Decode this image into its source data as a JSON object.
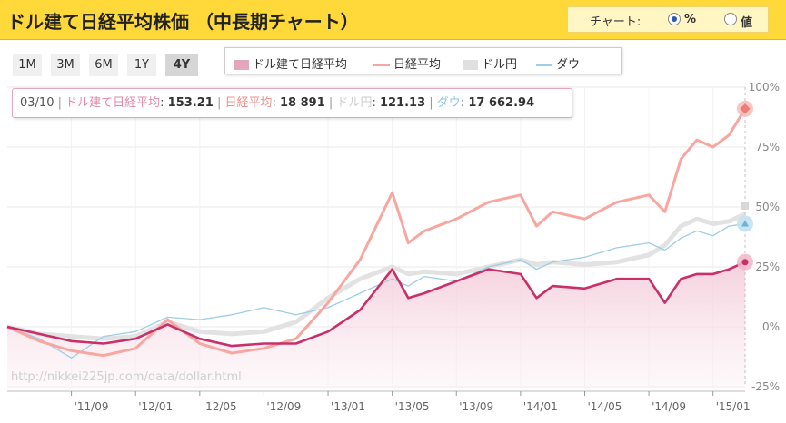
{
  "header": {
    "title": "ドル建て日経平均株価 （中長期チャート）"
  },
  "chart_toggle": {
    "label": "チャート:",
    "options": [
      "%",
      "値"
    ],
    "selected": "%"
  },
  "ranges": [
    "1M",
    "3M",
    "6M",
    "1Y",
    "4Y"
  ],
  "active_range": "4Y",
  "legend": [
    {
      "name": "ドル建て日経平均",
      "color": "#e4a6bd"
    },
    {
      "name": "日経平均",
      "color": "#f7a6a0"
    },
    {
      "name": "ドル円",
      "color": "#e0e0e0"
    },
    {
      "name": "ダウ",
      "color": "#9ecde6"
    }
  ],
  "tooltip": {
    "date": "03/10",
    "dollar_nikkei_label": "ドル建て日経平均",
    "dollar_nikkei_value": "153.21",
    "nikkei_label": "日経平均",
    "nikkei_value": "18 891",
    "usdjpy_label": "ドル円",
    "usdjpy_value": "121.13",
    "dow_label": "ダウ",
    "dow_value": "17 662.94"
  },
  "watermark": "http://nikkei225jp.com/data/dollar.html",
  "chart_data": {
    "type": "line",
    "y_unit": "%",
    "ylim": [
      -25,
      100
    ],
    "y_ticks": [
      "100%",
      "75%",
      "50%",
      "25%",
      "0%",
      "-25%"
    ],
    "y_tick_values": [
      100,
      75,
      50,
      25,
      0,
      -25
    ],
    "x_ticks": [
      "'11/09",
      "'12/01",
      "'12/05",
      "'12/09",
      "'13/01",
      "'13/05",
      "'13/09",
      "'14/01",
      "'14/05",
      "'14/09",
      "'15/01"
    ],
    "x": [
      "11/05",
      "11/07",
      "11/09",
      "11/11",
      "12/01",
      "12/03",
      "12/05",
      "12/07",
      "12/09",
      "12/11",
      "13/01",
      "13/03",
      "13/05",
      "13/06",
      "13/07",
      "13/09",
      "13/11",
      "14/01",
      "14/02",
      "14/03",
      "14/05",
      "14/07",
      "14/09",
      "14/10",
      "14/11",
      "14/12",
      "15/01",
      "15/02",
      "15/03"
    ],
    "series": [
      {
        "name": "日経平均",
        "color": "#f7a6a0",
        "values": [
          0,
          -6,
          -10,
          -12,
          -9,
          3,
          -7,
          -11,
          -9,
          -5,
          10,
          28,
          56,
          35,
          40,
          45,
          52,
          55,
          42,
          48,
          45,
          52,
          55,
          48,
          70,
          78,
          75,
          80,
          91
        ]
      },
      {
        "name": "ドル円",
        "color": "#e0e0e0",
        "values": [
          0,
          -3,
          -4,
          -5,
          -4,
          2,
          -2,
          -3,
          -2,
          2,
          12,
          20,
          25,
          22,
          23,
          22,
          25,
          28,
          26,
          27,
          26,
          27,
          30,
          34,
          42,
          45,
          43,
          44,
          47
        ]
      },
      {
        "name": "ダウ",
        "color": "#9ecde6",
        "values": [
          0,
          -5,
          -13,
          -4,
          -2,
          4,
          3,
          5,
          8,
          5,
          8,
          14,
          20,
          17,
          21,
          19,
          25,
          28,
          24,
          27,
          29,
          33,
          35,
          32,
          37,
          40,
          38,
          42,
          43
        ]
      },
      {
        "name": "ドル建て日経平均",
        "color": "#c9306a",
        "values": [
          0,
          -3,
          -6,
          -7,
          -5,
          1,
          -5,
          -8,
          -7,
          -7,
          -2,
          7,
          24,
          12,
          14,
          19,
          24,
          22,
          12,
          17,
          16,
          20,
          20,
          10,
          20,
          22,
          22,
          24,
          27
        ]
      }
    ]
  }
}
